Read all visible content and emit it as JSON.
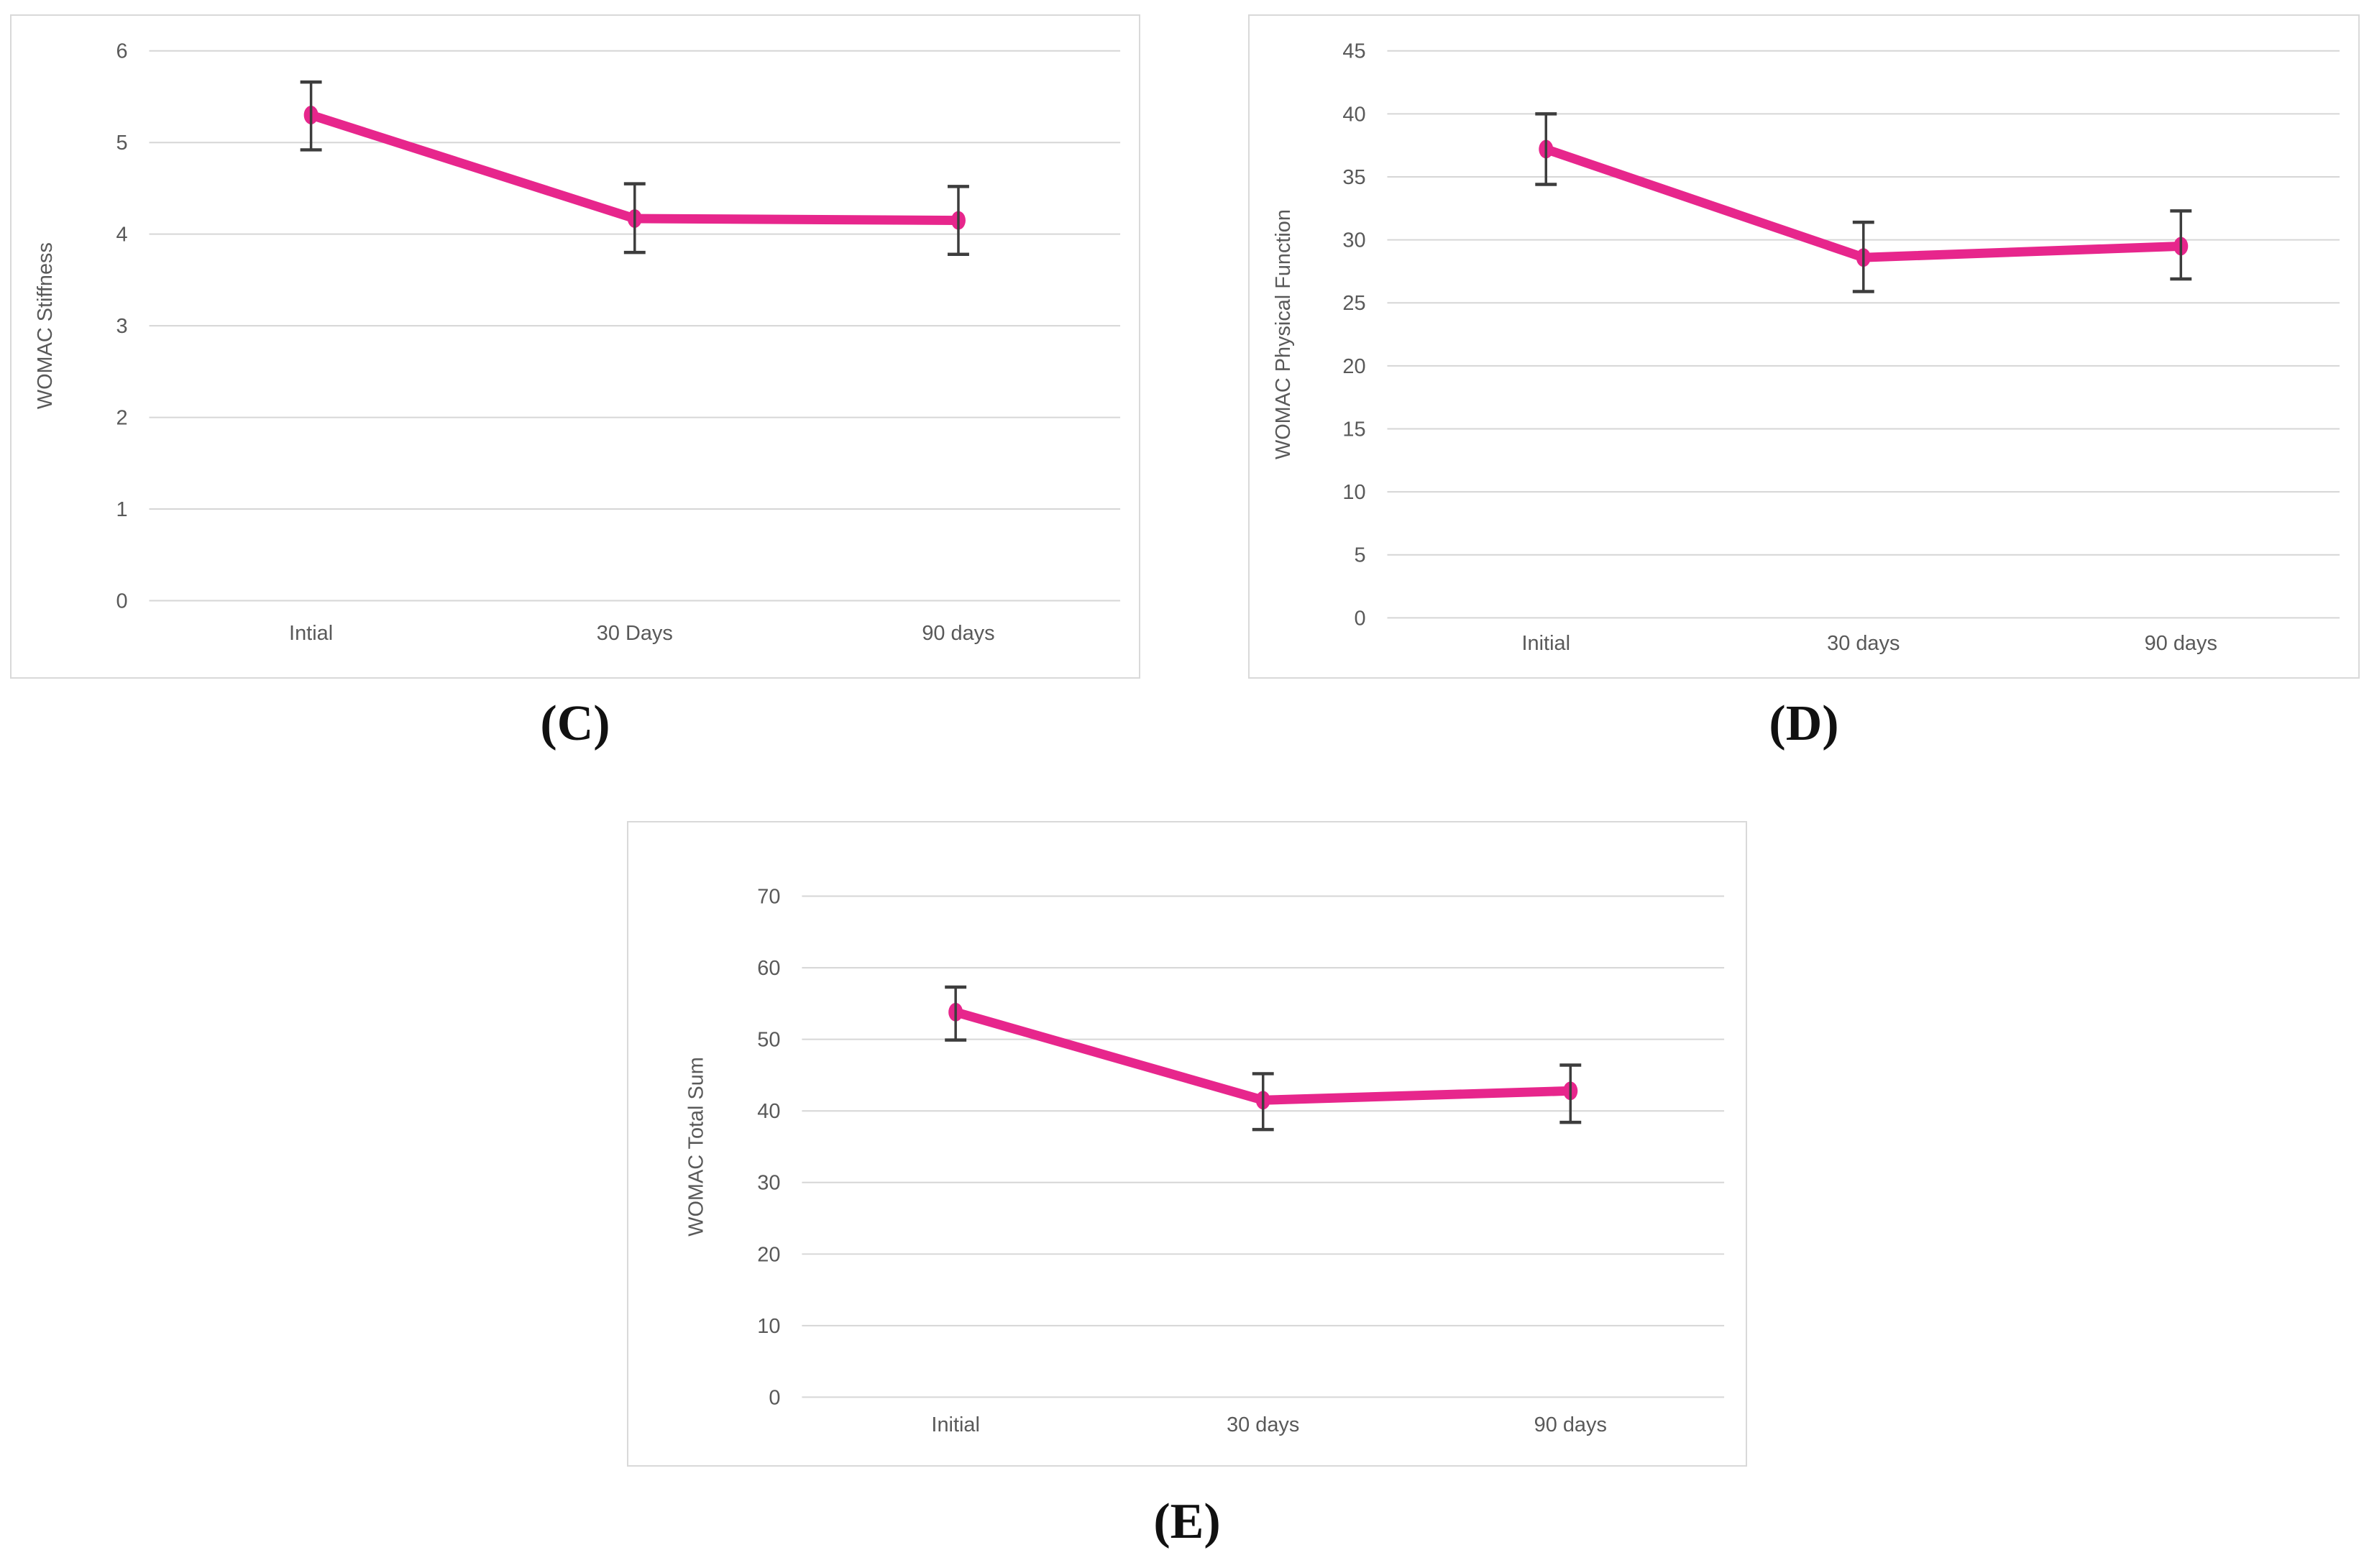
{
  "colors": {
    "line": "#E7268C",
    "marker": "#E7268C",
    "error_bar": "#3D3D3D",
    "grid": "#D6D6D6",
    "tick_text": "#595959",
    "panel_border": "#D9D9D9",
    "caption_text": "#111111",
    "background": "#FFFFFF"
  },
  "chart_data": [
    {
      "panel": "C",
      "caption": "(C)",
      "type": "line",
      "title": "",
      "xlabel": "",
      "ylabel": "WOMAC Stiffness",
      "categories": [
        "Intial",
        "30 Days",
        "90 days"
      ],
      "yticks": [
        0,
        1,
        2,
        3,
        4,
        5,
        6
      ],
      "ylim": [
        0,
        6
      ],
      "grid": true,
      "legend": "none",
      "series": [
        {
          "name": "WOMAC Stiffness",
          "values": [
            5.3,
            4.17,
            4.15
          ],
          "error_low": [
            4.92,
            3.8,
            3.78
          ],
          "error_high": [
            5.66,
            4.55,
            4.52
          ]
        }
      ]
    },
    {
      "panel": "D",
      "caption": "(D)",
      "type": "line",
      "title": "",
      "xlabel": "",
      "ylabel": "WOMAC Physical Function",
      "categories": [
        "Initial",
        "30 days",
        "90 days"
      ],
      "yticks": [
        0,
        5,
        10,
        15,
        20,
        25,
        30,
        35,
        40,
        45
      ],
      "ylim": [
        0,
        45
      ],
      "grid": true,
      "legend": "none",
      "series": [
        {
          "name": "WOMAC Physical Function",
          "values": [
            37.2,
            28.6,
            29.5
          ],
          "error_low": [
            34.4,
            25.9,
            26.9
          ],
          "error_high": [
            40.0,
            31.4,
            32.3
          ]
        }
      ]
    },
    {
      "panel": "E",
      "caption": "(E)",
      "type": "line",
      "title": "",
      "xlabel": "",
      "ylabel": "WOMAC Total Sum",
      "categories": [
        "Initial",
        "30 days",
        "90 days"
      ],
      "yticks": [
        0,
        10,
        20,
        30,
        40,
        50,
        60,
        70
      ],
      "ylim": [
        0,
        70
      ],
      "grid": true,
      "legend": "none",
      "series": [
        {
          "name": "WOMAC Total Sum",
          "values": [
            53.8,
            41.5,
            42.8
          ],
          "error_low": [
            49.9,
            37.4,
            38.4
          ],
          "error_high": [
            57.3,
            45.2,
            46.4
          ]
        }
      ]
    }
  ]
}
